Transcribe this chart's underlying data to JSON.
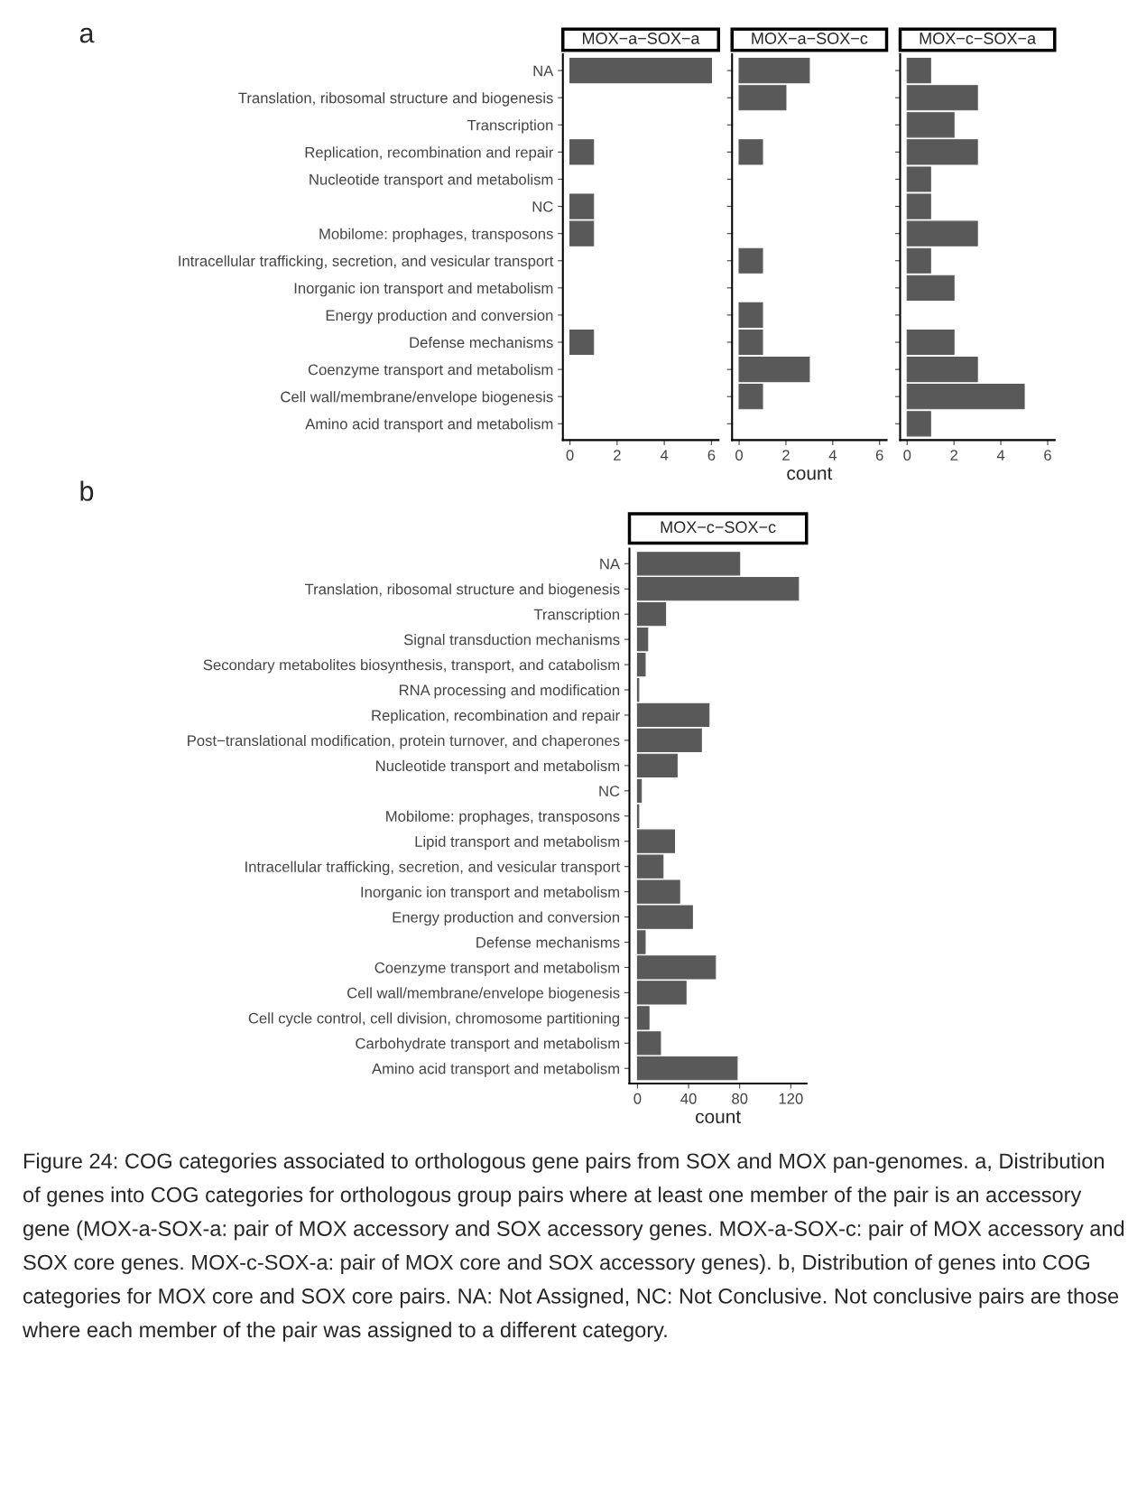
{
  "chart_data": [
    {
      "type": "bar",
      "orientation": "horizontal",
      "title": "MOX−a−SOX−a",
      "color": "#595959",
      "tick_labels": true,
      "xlim": [
        -0.3,
        6.3
      ],
      "xticks": [
        0,
        2,
        4,
        6
      ],
      "annotations": [
        "a"
      ],
      "categories": [
        "NA",
        "Translation, ribosomal structure and biogenesis",
        "Transcription",
        "Replication, recombination and repair",
        "Nucleotide transport and metabolism",
        "NC",
        "Mobilome: prophages, transposons",
        "Intracellular trafficking, secretion, and vesicular transport",
        "Inorganic ion transport and metabolism",
        "Energy production and conversion",
        "Defense mechanisms",
        "Coenzyme transport and metabolism",
        "Cell wall/membrane/envelope biogenesis",
        "Amino acid transport and metabolism"
      ],
      "values": [
        6,
        null,
        null,
        1,
        null,
        1,
        1,
        null,
        null,
        null,
        1,
        null,
        null,
        null
      ]
    },
    {
      "type": "bar",
      "orientation": "horizontal",
      "title": "MOX−a−SOX−c",
      "color": "#595959",
      "tick_labels": "x",
      "xlim": [
        -0.3,
        6.3
      ],
      "xticks": [
        0,
        2,
        4,
        6
      ],
      "xlabel": "count",
      "categories": [
        null,
        null,
        null,
        null,
        null,
        null,
        null,
        null,
        null,
        null,
        null,
        null,
        null,
        null
      ],
      "values": [
        3,
        2,
        null,
        1,
        null,
        null,
        null,
        1,
        null,
        1,
        1,
        3,
        1,
        null
      ]
    },
    {
      "type": "bar",
      "orientation": "horizontal",
      "title": "MOX−c−SOX−a",
      "color": "#595959",
      "tick_labels": "x",
      "xlim": [
        -0.3,
        6.3
      ],
      "xticks": [
        0,
        2,
        4,
        6
      ],
      "categories": [
        null,
        null,
        null,
        null,
        null,
        null,
        null,
        null,
        null,
        null,
        null,
        null,
        null,
        null
      ],
      "values": [
        1,
        3,
        2,
        3,
        1,
        1,
        3,
        1,
        2,
        null,
        2,
        3,
        5,
        1
      ]
    },
    {
      "type": "bar",
      "orientation": "horizontal",
      "title": "MOX−c−SOX−c",
      "color": "#595959",
      "tick_labels": true,
      "xlim": [
        -6.3,
        132.3
      ],
      "xticks": [
        0,
        40,
        80,
        120
      ],
      "xlabel": "count",
      "annotations": [
        "b",
        "Figure 24: COG categories associated to orthologous gene pairs from SOX and MOX pan-genomes. a, Distribution of genes into COG categories for orthologous group pairs where at least one member of the pair is an accessory gene (MOX-a-SOX-a: pair of MOX accessory and SOX accessory genes. MOX-a-SOX-c: pair of MOX accessory and SOX core genes. MOX-c-SOX-a: pair of MOX core and SOX accessory genes). b, Distribution of genes into COG categories for MOX core and SOX core pairs. NA: Not Assigned, NC: Not Conclusive. Not conclusive pairs are those where each member of the pair was assigned to a different category."
      ],
      "categories": [
        "NA",
        "Translation, ribosomal structure and biogenesis",
        "Transcription",
        "Signal transduction mechanisms",
        "Secondary metabolites biosynthesis, transport, and catabolism",
        "RNA processing and modification",
        "Replication, recombination and repair",
        "Post−translational modification, protein turnover, and chaperones",
        "Nucleotide transport and metabolism",
        "NC",
        "Mobilome: prophages, transposons",
        "Lipid transport and metabolism",
        "Intracellular trafficking, secretion, and vesicular transport",
        "Inorganic ion transport and metabolism",
        "Energy production and conversion",
        "Defense mechanisms",
        "Coenzyme transport and metabolism",
        "Cell wall/membrane/envelope biogenesis",
        "Cell cycle control, cell division, chromosome partitioning",
        "Carbohydrate transport and metabolism",
        "Amino acid transport and metabolism"
      ],
      "values": [
        80,
        126,
        22,
        8,
        6,
        1,
        56,
        50,
        31,
        3,
        1,
        29,
        20,
        33,
        43,
        6,
        61,
        38,
        9,
        18,
        78
      ]
    }
  ]
}
